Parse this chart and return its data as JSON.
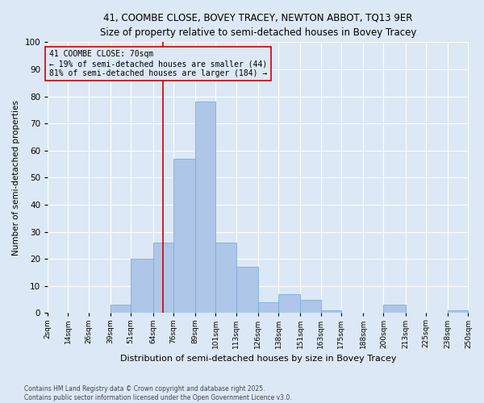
{
  "title": "41, COOMBE CLOSE, BOVEY TRACEY, NEWTON ABBOT, TQ13 9ER",
  "subtitle": "Size of property relative to semi-detached houses in Bovey Tracey",
  "xlabel": "Distribution of semi-detached houses by size in Bovey Tracey",
  "ylabel": "Number of semi-detached properties",
  "footer": "Contains HM Land Registry data © Crown copyright and database right 2025.\nContains public sector information licensed under the Open Government Licence v3.0.",
  "bin_labels": [
    "2sqm",
    "14sqm",
    "26sqm",
    "39sqm",
    "51sqm",
    "64sqm",
    "76sqm",
    "89sqm",
    "101sqm",
    "113sqm",
    "126sqm",
    "138sqm",
    "151sqm",
    "163sqm",
    "175sqm",
    "188sqm",
    "200sqm",
    "213sqm",
    "225sqm",
    "238sqm",
    "250sqm"
  ],
  "bin_edges": [
    2,
    14,
    26,
    39,
    51,
    64,
    76,
    89,
    101,
    113,
    126,
    138,
    151,
    163,
    175,
    188,
    200,
    213,
    225,
    238,
    250
  ],
  "bar_values": [
    0,
    0,
    0,
    3,
    20,
    26,
    57,
    78,
    26,
    17,
    4,
    7,
    5,
    1,
    0,
    0,
    3,
    0,
    0,
    1
  ],
  "bar_color": "#aec6e8",
  "bar_edgecolor": "#7aafd4",
  "property_line_x": 70,
  "annotation_title": "41 COOMBE CLOSE: 70sqm",
  "annotation_line1": "← 19% of semi-detached houses are smaller (44)",
  "annotation_line2": "81% of semi-detached houses are larger (184) →",
  "vline_color": "#cc0000",
  "annotation_box_edgecolor": "#cc0000",
  "ylim": [
    0,
    100
  ],
  "background_color": "#dce8f5",
  "grid_color": "#ffffff"
}
